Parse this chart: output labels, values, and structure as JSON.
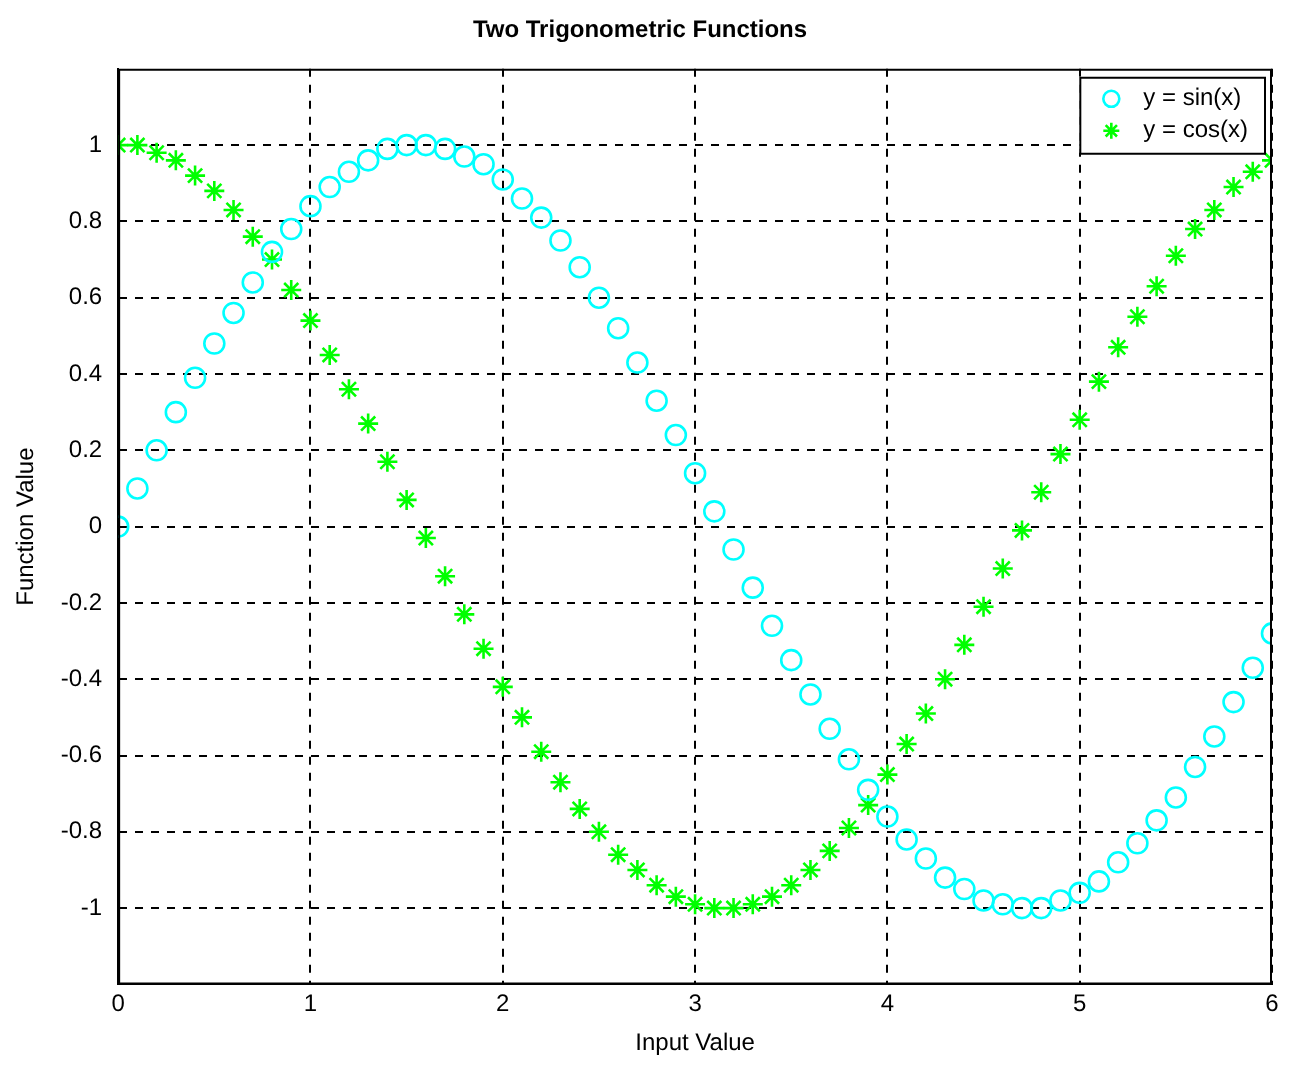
{
  "chart_data": {
    "type": "scatter",
    "title": "Two Trigonometric Functions",
    "xlabel": "Input Value",
    "ylabel": "Function Value",
    "x": [
      0,
      0.1,
      0.2,
      0.3,
      0.4,
      0.5,
      0.6,
      0.7,
      0.8,
      0.9,
      1,
      1.1,
      1.2,
      1.3,
      1.4,
      1.5,
      1.6,
      1.7,
      1.8,
      1.9,
      2,
      2.1,
      2.2,
      2.3,
      2.4,
      2.5,
      2.6,
      2.7,
      2.8,
      2.9,
      3,
      3.1,
      3.2,
      3.3,
      3.4,
      3.5,
      3.6,
      3.7,
      3.8,
      3.9,
      4,
      4.1,
      4.2,
      4.3,
      4.4,
      4.5,
      4.6,
      4.7,
      4.8,
      4.9,
      5,
      5.1,
      5.2,
      5.3,
      5.4,
      5.5,
      5.6,
      5.7,
      5.8,
      5.9,
      6
    ],
    "series": [
      {
        "name": "y = sin(x)",
        "color": "#00ffff",
        "marker": "circle",
        "values": [
          0,
          0.1,
          0.2,
          0.3,
          0.39,
          0.48,
          0.56,
          0.64,
          0.72,
          0.78,
          0.84,
          0.89,
          0.93,
          0.96,
          0.99,
          1,
          1,
          0.99,
          0.97,
          0.95,
          0.91,
          0.86,
          0.81,
          0.75,
          0.68,
          0.6,
          0.52,
          0.43,
          0.33,
          0.24,
          0.14,
          0.04,
          -0.06,
          -0.16,
          -0.26,
          -0.35,
          -0.44,
          -0.53,
          -0.61,
          -0.69,
          -0.76,
          -0.82,
          -0.87,
          -0.92,
          -0.95,
          -0.98,
          -0.99,
          -1,
          -1,
          -0.98,
          -0.96,
          -0.93,
          -0.88,
          -0.83,
          -0.77,
          -0.71,
          -0.63,
          -0.55,
          -0.46,
          -0.37,
          -0.28
        ]
      },
      {
        "name": "y = cos(x)",
        "color": "#00ff00",
        "marker": "cross",
        "values": [
          1,
          1,
          0.98,
          0.96,
          0.92,
          0.88,
          0.83,
          0.76,
          0.7,
          0.62,
          0.54,
          0.45,
          0.36,
          0.27,
          0.17,
          0.07,
          -0.03,
          -0.13,
          -0.23,
          -0.32,
          -0.42,
          -0.5,
          -0.59,
          -0.67,
          -0.74,
          -0.8,
          -0.86,
          -0.9,
          -0.94,
          -0.97,
          -0.99,
          -1,
          -1,
          -0.99,
          -0.97,
          -0.94,
          -0.9,
          -0.85,
          -0.79,
          -0.73,
          -0.65,
          -0.57,
          -0.49,
          -0.4,
          -0.31,
          -0.21,
          -0.11,
          -0.01,
          0.09,
          0.19,
          0.28,
          0.38,
          0.47,
          0.55,
          0.63,
          0.71,
          0.78,
          0.83,
          0.89,
          0.93,
          0.96
        ]
      }
    ],
    "xlim": [
      0,
      6
    ],
    "xticks": [
      0,
      1,
      2,
      3,
      4,
      5,
      6
    ],
    "ylim": [
      -1.2,
      1.2
    ],
    "yticks": [
      -1,
      -0.8,
      -0.6,
      -0.4,
      -0.2,
      0,
      0.2,
      0.4,
      0.6,
      0.8,
      1
    ],
    "grid": true,
    "legend": "top right"
  }
}
